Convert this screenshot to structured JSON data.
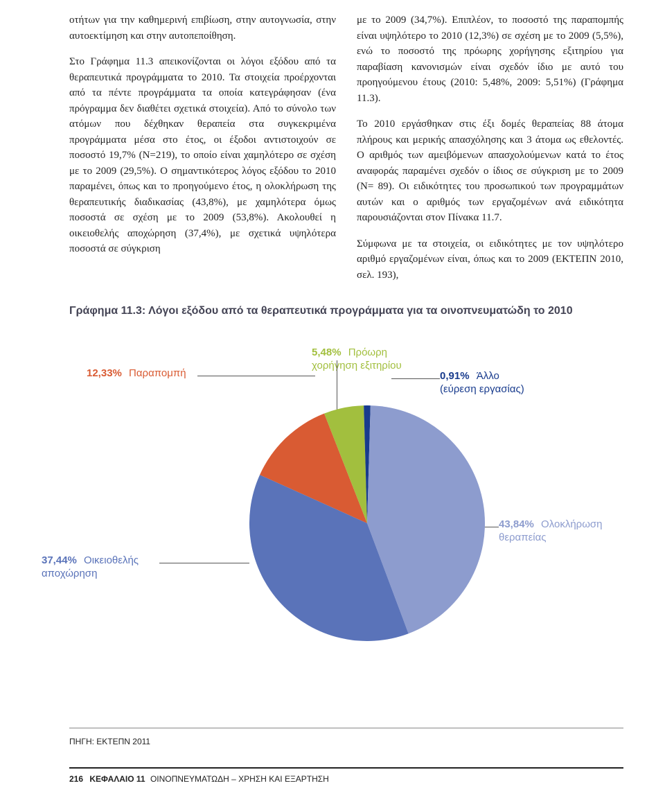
{
  "text": {
    "left_col": "οτήτων για την καθημερινή επιβίωση, στην αυτογνωσία, στην αυτοεκτίμηση και στην αυτοπεποίθηση.\n\nΣτο Γράφημα 11.3 απεικονίζονται οι λόγοι εξόδου από τα θεραπευτικά προγράμματα το 2010. Τα στοιχεία προέρχονται από τα πέντε προγράμματα τα οποία κατεγράφησαν (ένα πρόγραμμα δεν διαθέτει σχετικά στοιχεία). Από το σύνολο των ατόμων που δέχθηκαν θεραπεία στα συγκεκριμένα προγράμματα μέσα στο έτος, οι έξοδοι αντιστοιχούν σε ποσοστό 19,7% (Ν=219), το οποίο είναι χαμηλότερο σε σχέση με το 2009 (29,5%). Ο σημαντικότερος λόγος εξόδου το 2010 παραμένει, όπως και το προηγούμενο έτος, η ολοκλήρωση της θεραπευτικής διαδικασίας (43,8%), με χαμηλότερα όμως ποσοστά σε σχέση με το 2009 (53,8%). Ακολουθεί η οικειοθελής αποχώρηση (37,4%), με σχετικά υψηλότερα ποσοστά σε σύγκριση",
    "right_col": "με το 2009 (34,7%). Επιπλέον, το ποσοστό της παραπομπής είναι υψηλότερο το 2010 (12,3%) σε σχέση με το 2009 (5,5%), ενώ το ποσοστό της πρόωρης χορήγησης εξιτηρίου για παραβίαση κανονισμών είναι σχεδόν ίδιο με αυτό του προηγούμενου έτους (2010: 5,48%, 2009: 5,51%) (Γράφημα 11.3).\n\nΤο 2010 εργάσθηκαν στις έξι δομές θεραπείας 88 άτομα πλήρους και μερικής απασχόλησης και 3 άτομα ως εθελοντές. Ο αριθμός των αμειβόμενων απασχολούμενων κατά το έτος αναφοράς παραμένει σχεδόν ο ίδιος σε σύγκριση με το 2009 (Ν= 89). Οι ειδικότητες του προσωπικού των προγραμμάτων αυτών και ο αριθμός των εργαζομένων ανά ειδικότητα παρουσιάζονται στον Πίνακα 11.7.\n\nΣύμφωνα με τα στοιχεία, οι ειδικότητες με τον υψηλότερο αριθμό εργαζομένων είναι, όπως και το 2009 (ΕΚΤΕΠΝ 2010, σελ. 193),"
  },
  "chart": {
    "title": "Γράφημα 11.3: Λόγοι εξόδου από τα θεραπευτικά προγράμματα για τα οινοπνευματώδη το 2010",
    "type": "pie",
    "slices": [
      {
        "label": "Παραπομπή",
        "pct_label": "12,33%",
        "value": 12.33,
        "color": "#d95b33"
      },
      {
        "label": "Πρόωρη χορήγηση εξιτηρίου",
        "pct_label": "5,48%",
        "value": 5.48,
        "color": "#a2bf3e"
      },
      {
        "label": "Άλλο (εύρεση εργασίας)",
        "pct_label": "0,91%",
        "value": 0.91,
        "color": "#183b8d"
      },
      {
        "label": "Ολοκλήρωση θεραπείας",
        "pct_label": "43,84%",
        "value": 43.84,
        "color": "#8d9cce"
      },
      {
        "label": "Οικειοθελής αποχώρηση",
        "pct_label": "37,44%",
        "value": 37.44,
        "color": "#5a73b9"
      }
    ],
    "label_colors": {
      "parapompi": "#d95b33",
      "proori": "#a2bf3e",
      "allo": "#183b8d",
      "oloklirosi": "#8d9cce",
      "oikio": "#5a73b9"
    },
    "source": "ΠΗΓΗ: ΕΚΤΕΠΝ 2011"
  },
  "footer": {
    "page": "216",
    "chapter": "ΚΕΦΑΛΑΙΟ 11",
    "title": "ΟΙΝΟΠΝΕΥΜΑΤΩΔΗ – ΧΡΗΣΗ ΚΑΙ ΕΞΑΡΤΗΣΗ"
  }
}
